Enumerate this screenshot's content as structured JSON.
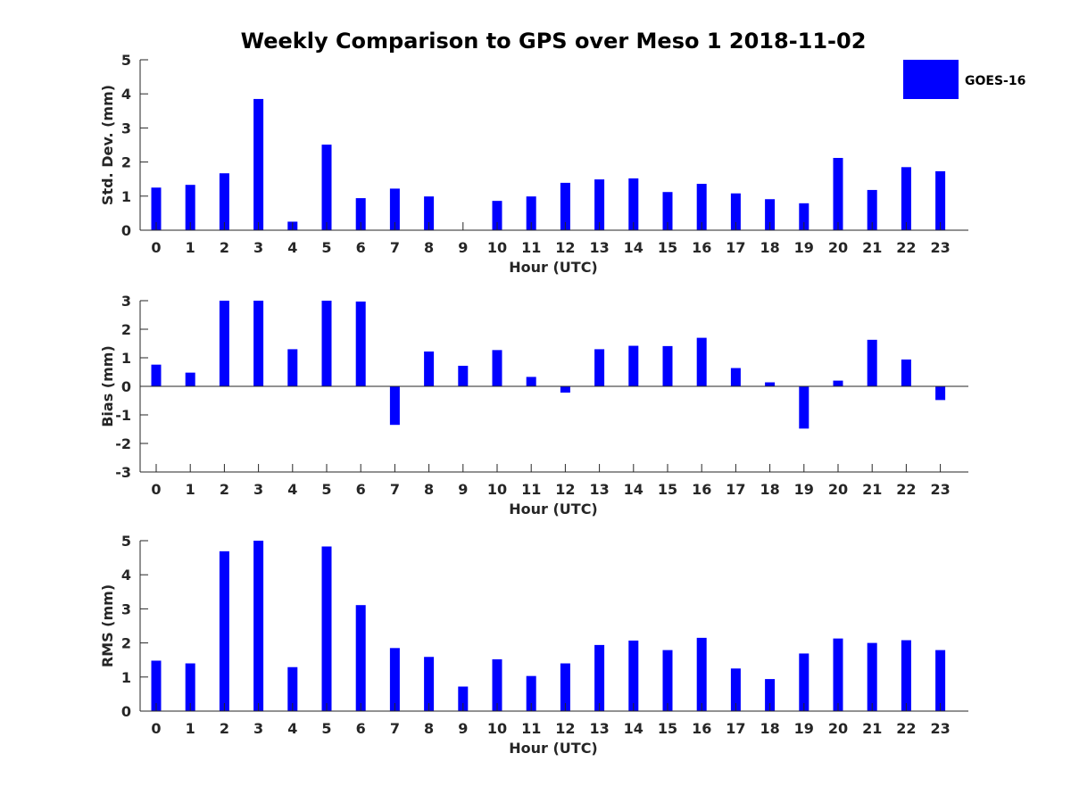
{
  "colors": {
    "bar": "#0000ff",
    "axis": "#262626"
  },
  "chart_data": [
    {
      "type": "bar",
      "title": "Weekly Comparison to GPS over Meso 1 2018-11-02",
      "xlabel": "Hour (UTC)",
      "ylabel": "Std. Dev. (mm)",
      "categories": [
        "0",
        "1",
        "2",
        "3",
        "4",
        "5",
        "6",
        "7",
        "8",
        "9",
        "10",
        "11",
        "12",
        "13",
        "14",
        "15",
        "16",
        "17",
        "18",
        "19",
        "20",
        "21",
        "22",
        "23"
      ],
      "series": [
        {
          "name": "GOES-16",
          "values": [
            1.25,
            1.33,
            1.67,
            3.85,
            0.25,
            2.51,
            0.94,
            1.22,
            0.99,
            0.0,
            0.86,
            0.99,
            1.39,
            1.49,
            1.52,
            1.12,
            1.36,
            1.08,
            0.91,
            0.79,
            2.12,
            1.18,
            1.85,
            1.73
          ]
        }
      ],
      "ylim": [
        0,
        5
      ],
      "yticks": [
        "0",
        "1",
        "2",
        "3",
        "4",
        "5"
      ],
      "legend": {
        "entries": [
          "GOES-16"
        ],
        "position": "top-right"
      }
    },
    {
      "type": "bar",
      "xlabel": "Hour (UTC)",
      "ylabel": "Bias (mm)",
      "categories": [
        "0",
        "1",
        "2",
        "3",
        "4",
        "5",
        "6",
        "7",
        "8",
        "9",
        "10",
        "11",
        "12",
        "13",
        "14",
        "15",
        "16",
        "17",
        "18",
        "19",
        "20",
        "21",
        "22",
        "23"
      ],
      "series": [
        {
          "name": "GOES-16",
          "values": [
            0.76,
            0.48,
            3.0,
            3.0,
            1.3,
            3.0,
            2.97,
            -1.35,
            1.22,
            0.72,
            1.27,
            0.33,
            -0.22,
            1.3,
            1.42,
            1.41,
            1.7,
            0.64,
            0.14,
            -1.48,
            0.2,
            1.63,
            0.94,
            -0.48
          ]
        }
      ],
      "ylim": [
        -3,
        3
      ],
      "yticks": [
        "-3",
        "-2",
        "-1",
        "0",
        "1",
        "2",
        "3"
      ]
    },
    {
      "type": "bar",
      "xlabel": "Hour (UTC)",
      "ylabel": "RMS (mm)",
      "categories": [
        "0",
        "1",
        "2",
        "3",
        "4",
        "5",
        "6",
        "7",
        "8",
        "9",
        "10",
        "11",
        "12",
        "13",
        "14",
        "15",
        "16",
        "17",
        "18",
        "19",
        "20",
        "21",
        "22",
        "23"
      ],
      "series": [
        {
          "name": "GOES-16",
          "values": [
            1.48,
            1.4,
            4.69,
            5.0,
            1.29,
            4.83,
            3.11,
            1.85,
            1.59,
            0.72,
            1.52,
            1.03,
            1.4,
            1.94,
            2.07,
            1.79,
            2.15,
            1.25,
            0.94,
            1.69,
            2.13,
            2.0,
            2.08,
            1.79
          ]
        }
      ],
      "ylim": [
        0,
        5
      ],
      "yticks": [
        "0",
        "1",
        "2",
        "3",
        "4",
        "5"
      ]
    }
  ]
}
